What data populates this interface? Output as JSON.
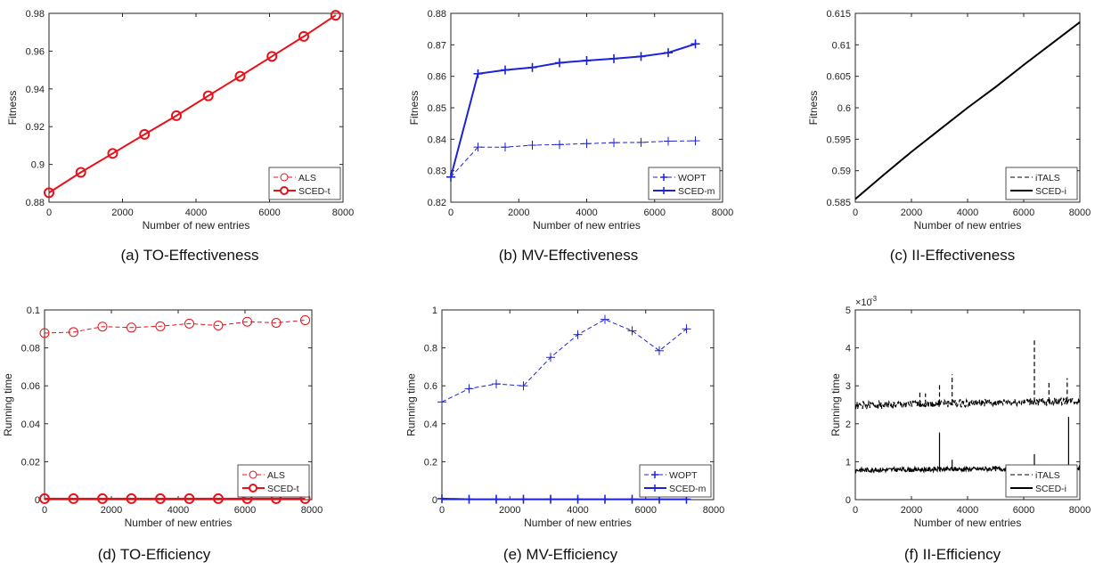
{
  "chart_data": [
    {
      "type": "line",
      "caption": "(a) TO-Effectiveness",
      "xlabel": "Number of new entries",
      "ylabel": "Fitness",
      "xlim": [
        0,
        8000
      ],
      "ylim": [
        0.88,
        0.98
      ],
      "xticks": [
        "0",
        "2000",
        "4000",
        "6000",
        "8000"
      ],
      "yticks": [
        "0.88",
        "0.9",
        "0.92",
        "0.94",
        "0.96",
        "0.98"
      ],
      "legend_position": "bottom-right",
      "grid": false,
      "series": [
        {
          "name": "ALS",
          "color": "#e8111a",
          "style": "dashed",
          "marker": "circle",
          "x": [
            0,
            866,
            1733,
            2600,
            3466,
            4333,
            5200,
            6066,
            6933,
            7800
          ],
          "y": [
            0.885,
            0.8958,
            0.9058,
            0.9159,
            0.9258,
            0.9363,
            0.9467,
            0.9572,
            0.9678,
            0.979
          ]
        },
        {
          "name": "SCED-t",
          "color": "#e8111a",
          "style": "solid",
          "marker": "circle",
          "x": [
            0,
            866,
            1733,
            2600,
            3466,
            4333,
            5200,
            6066,
            6933,
            7800
          ],
          "y": [
            0.885,
            0.8958,
            0.9058,
            0.9159,
            0.9258,
            0.9363,
            0.9467,
            0.9572,
            0.9678,
            0.979
          ]
        }
      ]
    },
    {
      "type": "line",
      "caption": "(b) MV-Effectiveness",
      "xlabel": "Number of new entries",
      "ylabel": "Fitness",
      "xlim": [
        0,
        8000
      ],
      "ylim": [
        0.82,
        0.88
      ],
      "xticks": [
        "0",
        "2000",
        "4000",
        "6000",
        "8000"
      ],
      "yticks": [
        "0.82",
        "0.83",
        "0.84",
        "0.85",
        "0.86",
        "0.87",
        "0.88"
      ],
      "legend_position": "bottom-right",
      "grid": false,
      "series": [
        {
          "name": "WOPT",
          "color": "#1c22d6",
          "style": "dashed",
          "marker": "plus",
          "x": [
            0,
            800,
            1600,
            2400,
            3200,
            4000,
            4800,
            5600,
            6400,
            7200
          ],
          "y": [
            0.828,
            0.8375,
            0.8375,
            0.8381,
            0.8383,
            0.8386,
            0.8389,
            0.839,
            0.8394,
            0.8395
          ]
        },
        {
          "name": "SCED-m",
          "color": "#1c22d6",
          "style": "solid",
          "marker": "plus",
          "x": [
            0,
            800,
            1600,
            2400,
            3200,
            4000,
            4800,
            5600,
            6400,
            7200
          ],
          "y": [
            0.828,
            0.8608,
            0.862,
            0.8628,
            0.8643,
            0.865,
            0.8656,
            0.8663,
            0.8675,
            0.8703
          ]
        }
      ]
    },
    {
      "type": "line",
      "caption": "(c) II-Effectiveness",
      "xlabel": "Number of new entries",
      "ylabel": "Fitness",
      "xlim": [
        0,
        8000
      ],
      "ylim": [
        0.585,
        0.615
      ],
      "xticks": [
        "0",
        "2000",
        "4000",
        "6000",
        "8000"
      ],
      "yticks": [
        "0.585",
        "0.59",
        "0.595",
        "0.6",
        "0.605",
        "0.61",
        "0.615"
      ],
      "legend_position": "bottom-right",
      "grid": false,
      "series": [
        {
          "name": "iTALS",
          "color": "#000000",
          "style": "dashed",
          "marker": "none",
          "x": [
            0,
            1000,
            2000,
            3000,
            4000,
            5000,
            6000,
            7000,
            8000
          ],
          "y": [
            0.5855,
            0.5893,
            0.593,
            0.5965,
            0.6,
            0.6033,
            0.6068,
            0.6102,
            0.6136
          ]
        },
        {
          "name": "SCED-i",
          "color": "#000000",
          "style": "solid",
          "marker": "none",
          "x": [
            0,
            1000,
            2000,
            3000,
            4000,
            5000,
            6000,
            7000,
            8000
          ],
          "y": [
            0.5855,
            0.5893,
            0.593,
            0.5965,
            0.6,
            0.6033,
            0.6068,
            0.6102,
            0.6136
          ]
        }
      ]
    },
    {
      "type": "line",
      "caption": "(d) TO-Efficiency",
      "xlabel": "Number of new entries",
      "ylabel": "Running time",
      "xlim": [
        0,
        8000
      ],
      "ylim": [
        0,
        0.1
      ],
      "xticks": [
        "0",
        "2000",
        "4000",
        "6000",
        "8000"
      ],
      "yticks": [
        "0",
        "0.02",
        "0.04",
        "0.06",
        "0.08",
        "0.1"
      ],
      "legend_position": "bottom-right",
      "grid": false,
      "series": [
        {
          "name": "ALS",
          "color": "#e8111a",
          "style": "dashed",
          "marker": "circle",
          "x": [
            0,
            866,
            1733,
            2600,
            3466,
            4333,
            5200,
            6066,
            6933,
            7800
          ],
          "y": [
            0.0878,
            0.0883,
            0.0912,
            0.0907,
            0.0914,
            0.0928,
            0.0918,
            0.0938,
            0.0932,
            0.0946
          ]
        },
        {
          "name": "SCED-t",
          "color": "#e8111a",
          "style": "solid",
          "marker": "circle",
          "x": [
            0,
            866,
            1733,
            2600,
            3466,
            4333,
            5200,
            6066,
            6933,
            7800
          ],
          "y": [
            0.0005,
            0.0005,
            0.0005,
            0.0005,
            0.0005,
            0.0005,
            0.0005,
            0.0005,
            0.0005,
            0.0005
          ]
        }
      ]
    },
    {
      "type": "line",
      "caption": "(e) MV-Efficiency",
      "xlabel": "Number of new entries",
      "ylabel": "Running time",
      "xlim": [
        0,
        8000
      ],
      "ylim": [
        0,
        1
      ],
      "xticks": [
        "0",
        "2000",
        "4000",
        "6000",
        "8000"
      ],
      "yticks": [
        "0",
        "0.2",
        "0.4",
        "0.6",
        "0.8",
        "1"
      ],
      "legend_position": "bottom-right",
      "grid": false,
      "series": [
        {
          "name": "WOPT",
          "color": "#1c22d6",
          "style": "dashed",
          "marker": "plus",
          "x": [
            0,
            800,
            1600,
            2400,
            3200,
            4000,
            4800,
            5600,
            6400,
            7200
          ],
          "y": [
            0.515,
            0.585,
            0.61,
            0.6,
            0.75,
            0.87,
            0.95,
            0.89,
            0.785,
            0.9
          ]
        },
        {
          "name": "SCED-m",
          "color": "#1c22d6",
          "style": "solid",
          "marker": "plus",
          "x": [
            0,
            800,
            1600,
            2400,
            3200,
            4000,
            4800,
            5600,
            6400,
            7200
          ],
          "y": [
            0.005,
            0.002,
            0.002,
            0.002,
            0.002,
            0.002,
            0.002,
            0.002,
            0.002,
            0.002
          ]
        }
      ]
    },
    {
      "type": "line",
      "caption": "(f) II-Efficiency",
      "xlabel": "Number of new entries",
      "ylabel": "Running time",
      "exponent_label": "×10",
      "exponent_power": "-3",
      "xlim": [
        0,
        8000
      ],
      "ylim": [
        0,
        5
      ],
      "xticks": [
        "0",
        "2000",
        "4000",
        "6000",
        "8000"
      ],
      "yticks": [
        "0",
        "1",
        "2",
        "3",
        "4",
        "5"
      ],
      "legend_position": "bottom-right",
      "grid": false,
      "series": [
        {
          "name": "iTALS",
          "color": "#000000",
          "style": "dashed",
          "marker": "none",
          "base": 2.48,
          "trend_end": 2.6,
          "noise": 0.1,
          "spikes": [
            [
              2300,
              2.85
            ],
            [
              2500,
              2.8
            ],
            [
              3000,
              3.05
            ],
            [
              3450,
              3.3
            ],
            [
              6380,
              4.22
            ],
            [
              6900,
              3.1
            ],
            [
              7550,
              3.2
            ]
          ]
        },
        {
          "name": "SCED-i",
          "color": "#000000",
          "style": "solid",
          "marker": "none",
          "base": 0.78,
          "trend_end": 0.83,
          "noise": 0.06,
          "spikes": [
            [
              3000,
              1.77
            ],
            [
              3450,
              1.05
            ],
            [
              6380,
              1.2
            ],
            [
              7600,
              2.18
            ]
          ]
        }
      ]
    }
  ]
}
